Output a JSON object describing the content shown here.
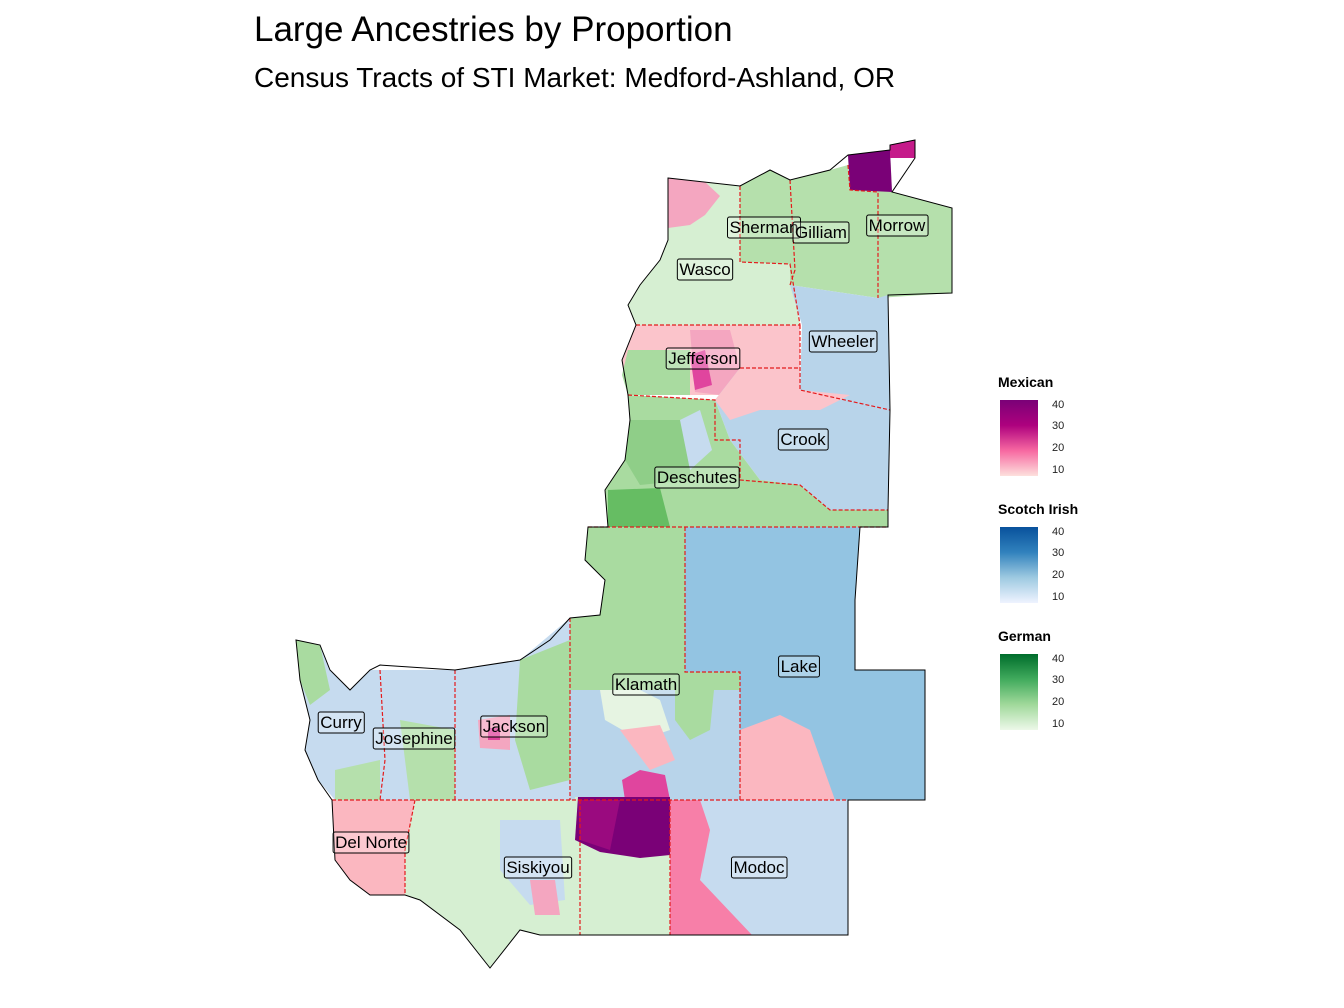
{
  "title": "Large Ancestries by Proportion",
  "subtitle": "Census Tracts of STI Market: Medford-Ashland, OR",
  "counties": [
    {
      "name": "Sherman"
    },
    {
      "name": "Gilliam"
    },
    {
      "name": "Morrow"
    },
    {
      "name": "Wasco"
    },
    {
      "name": "Wheeler"
    },
    {
      "name": "Jefferson"
    },
    {
      "name": "Crook"
    },
    {
      "name": "Deschutes"
    },
    {
      "name": "Lake"
    },
    {
      "name": "Klamath"
    },
    {
      "name": "Curry"
    },
    {
      "name": "Josephine"
    },
    {
      "name": "Jackson"
    },
    {
      "name": "Del Norte"
    },
    {
      "name": "Siskiyou"
    },
    {
      "name": "Modoc"
    }
  ],
  "legends": [
    {
      "title": "Mexican",
      "ticks": [
        "40",
        "30",
        "20",
        "10"
      ],
      "colors": [
        "#fde0dd",
        "#f768a1",
        "#ae017e",
        "#7a0177"
      ]
    },
    {
      "title": "Scotch Irish",
      "ticks": [
        "40",
        "30",
        "20",
        "10"
      ],
      "colors": [
        "#eff3ff",
        "#9ecae1",
        "#3182bd",
        "#08519c"
      ]
    },
    {
      "title": "German",
      "ticks": [
        "40",
        "30",
        "20",
        "10"
      ],
      "colors": [
        "#edf8e9",
        "#a1d99b",
        "#41ab5d",
        "#006d2c"
      ]
    }
  ],
  "colors": {
    "county_border": "#e41a1c",
    "outline": "#000000"
  }
}
